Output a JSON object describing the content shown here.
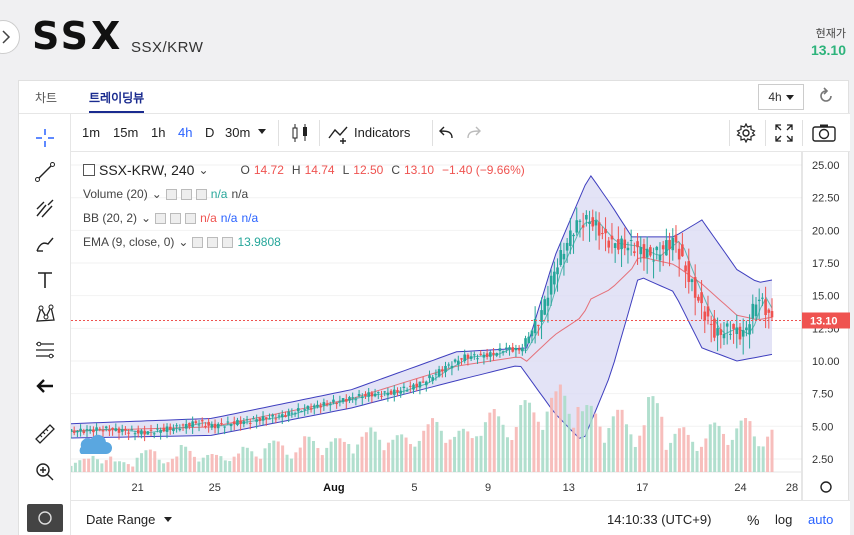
{
  "header": {
    "title": "SSX",
    "pair": "SSX/KRW",
    "price_label": "현재가",
    "price_value": "13.10"
  },
  "tabs": [
    {
      "label": "차트"
    },
    {
      "label": "트레이딩뷰"
    }
  ],
  "interval_select": "4h",
  "toolbar": {
    "intervals": [
      "1m",
      "15m",
      "1h",
      "4h",
      "D",
      "30m"
    ],
    "indicators_label": "Indicators"
  },
  "legend": {
    "symbol": "SSX-KRW, 240",
    "ohlc": {
      "o_label": "O",
      "o": "14.72",
      "h_label": "H",
      "h": "14.74",
      "l_label": "L",
      "l": "12.50",
      "c_label": "C",
      "c": "13.10",
      "chg": "−1.40 (−9.66%)"
    },
    "volume": {
      "label": "Volume (20)",
      "v1": "n/a",
      "v2": "n/a"
    },
    "bb": {
      "label": "BB (20, 2)",
      "v1": "n/a",
      "v2": "n/a",
      "v3": "n/a"
    },
    "ema": {
      "label": "EMA (9, close, 0)",
      "v": "13.9808"
    }
  },
  "price_axis": {
    "ticks": [
      "25.00",
      "22.50",
      "20.00",
      "17.50",
      "15.00",
      "12.50",
      "10.00",
      "7.50",
      "5.00",
      "2.50"
    ],
    "last_price_tag": "13.10"
  },
  "time_axis": {
    "ticks": [
      "21",
      "25",
      "Aug",
      "5",
      "9",
      "13",
      "17",
      "24",
      "28"
    ]
  },
  "bottombar": {
    "date_range": "Date Range",
    "clock": "14:10:33 (UTC+9)",
    "pct": "%",
    "log": "log",
    "auto": "auto"
  },
  "colors": {
    "up": "#26a69a",
    "down": "#ef5350",
    "bb_fill": "#d9d9f3",
    "bb_line": "#3f3fbf",
    "accent": "#2962ff",
    "price_green": "#2db37b"
  },
  "chart_data": {
    "type": "candlestick",
    "symbol": "SSX-KRW",
    "ylim": [
      1.5,
      26
    ],
    "close_path": [
      [
        0,
        4.6
      ],
      [
        0.05,
        4.8
      ],
      [
        0.1,
        4.5
      ],
      [
        0.15,
        4.9
      ],
      [
        0.18,
        5.3
      ],
      [
        0.2,
        5.0
      ],
      [
        0.25,
        5.4
      ],
      [
        0.3,
        5.8
      ],
      [
        0.33,
        6.3
      ],
      [
        0.37,
        6.8
      ],
      [
        0.42,
        7.4
      ],
      [
        0.46,
        7.6
      ],
      [
        0.5,
        8.3
      ],
      [
        0.53,
        9.4
      ],
      [
        0.56,
        10.3
      ],
      [
        0.6,
        10.5
      ],
      [
        0.62,
        11.0
      ],
      [
        0.64,
        10.8
      ],
      [
        0.67,
        13.5
      ],
      [
        0.69,
        17.0
      ],
      [
        0.72,
        20.5
      ],
      [
        0.74,
        20.8
      ],
      [
        0.77,
        19.0
      ],
      [
        0.8,
        18.8
      ],
      [
        0.83,
        18.0
      ],
      [
        0.86,
        19.3
      ],
      [
        0.88,
        16.5
      ],
      [
        0.9,
        14.0
      ],
      [
        0.92,
        12.0
      ],
      [
        0.94,
        12.5
      ],
      [
        0.96,
        12.0
      ],
      [
        0.98,
        15.0
      ],
      [
        1.0,
        13.1
      ]
    ],
    "bb_upper": [
      [
        0,
        5.2
      ],
      [
        0.2,
        5.6
      ],
      [
        0.4,
        7.8
      ],
      [
        0.55,
        10.7
      ],
      [
        0.65,
        11.0
      ],
      [
        0.69,
        18.0
      ],
      [
        0.74,
        24.3
      ],
      [
        0.77,
        22.0
      ],
      [
        0.8,
        19.5
      ],
      [
        0.86,
        19.5
      ],
      [
        0.9,
        20.8
      ],
      [
        0.95,
        17.0
      ],
      [
        0.98,
        16.0
      ],
      [
        1.0,
        16.2
      ]
    ],
    "bb_lower": [
      [
        0,
        4.1
      ],
      [
        0.2,
        4.3
      ],
      [
        0.4,
        6.4
      ],
      [
        0.55,
        8.5
      ],
      [
        0.64,
        9.7
      ],
      [
        0.69,
        6.0
      ],
      [
        0.73,
        3.8
      ],
      [
        0.77,
        9.0
      ],
      [
        0.81,
        16.5
      ],
      [
        0.86,
        15.3
      ],
      [
        0.9,
        11.0
      ],
      [
        0.95,
        10.0
      ],
      [
        1.0,
        10.5
      ]
    ],
    "volume": [
      0.15,
      0.2,
      0.12,
      0.25,
      0.18,
      0.3,
      0.2,
      0.22,
      0.28,
      0.35,
      0.3,
      0.4,
      0.38,
      0.45,
      0.5,
      0.42,
      0.55,
      0.6,
      0.48,
      0.7,
      0.65,
      0.8,
      0.9,
      1.0,
      0.75,
      0.7,
      0.6,
      0.85,
      0.5,
      0.45,
      0.55,
      0.6,
      0.5
    ]
  }
}
